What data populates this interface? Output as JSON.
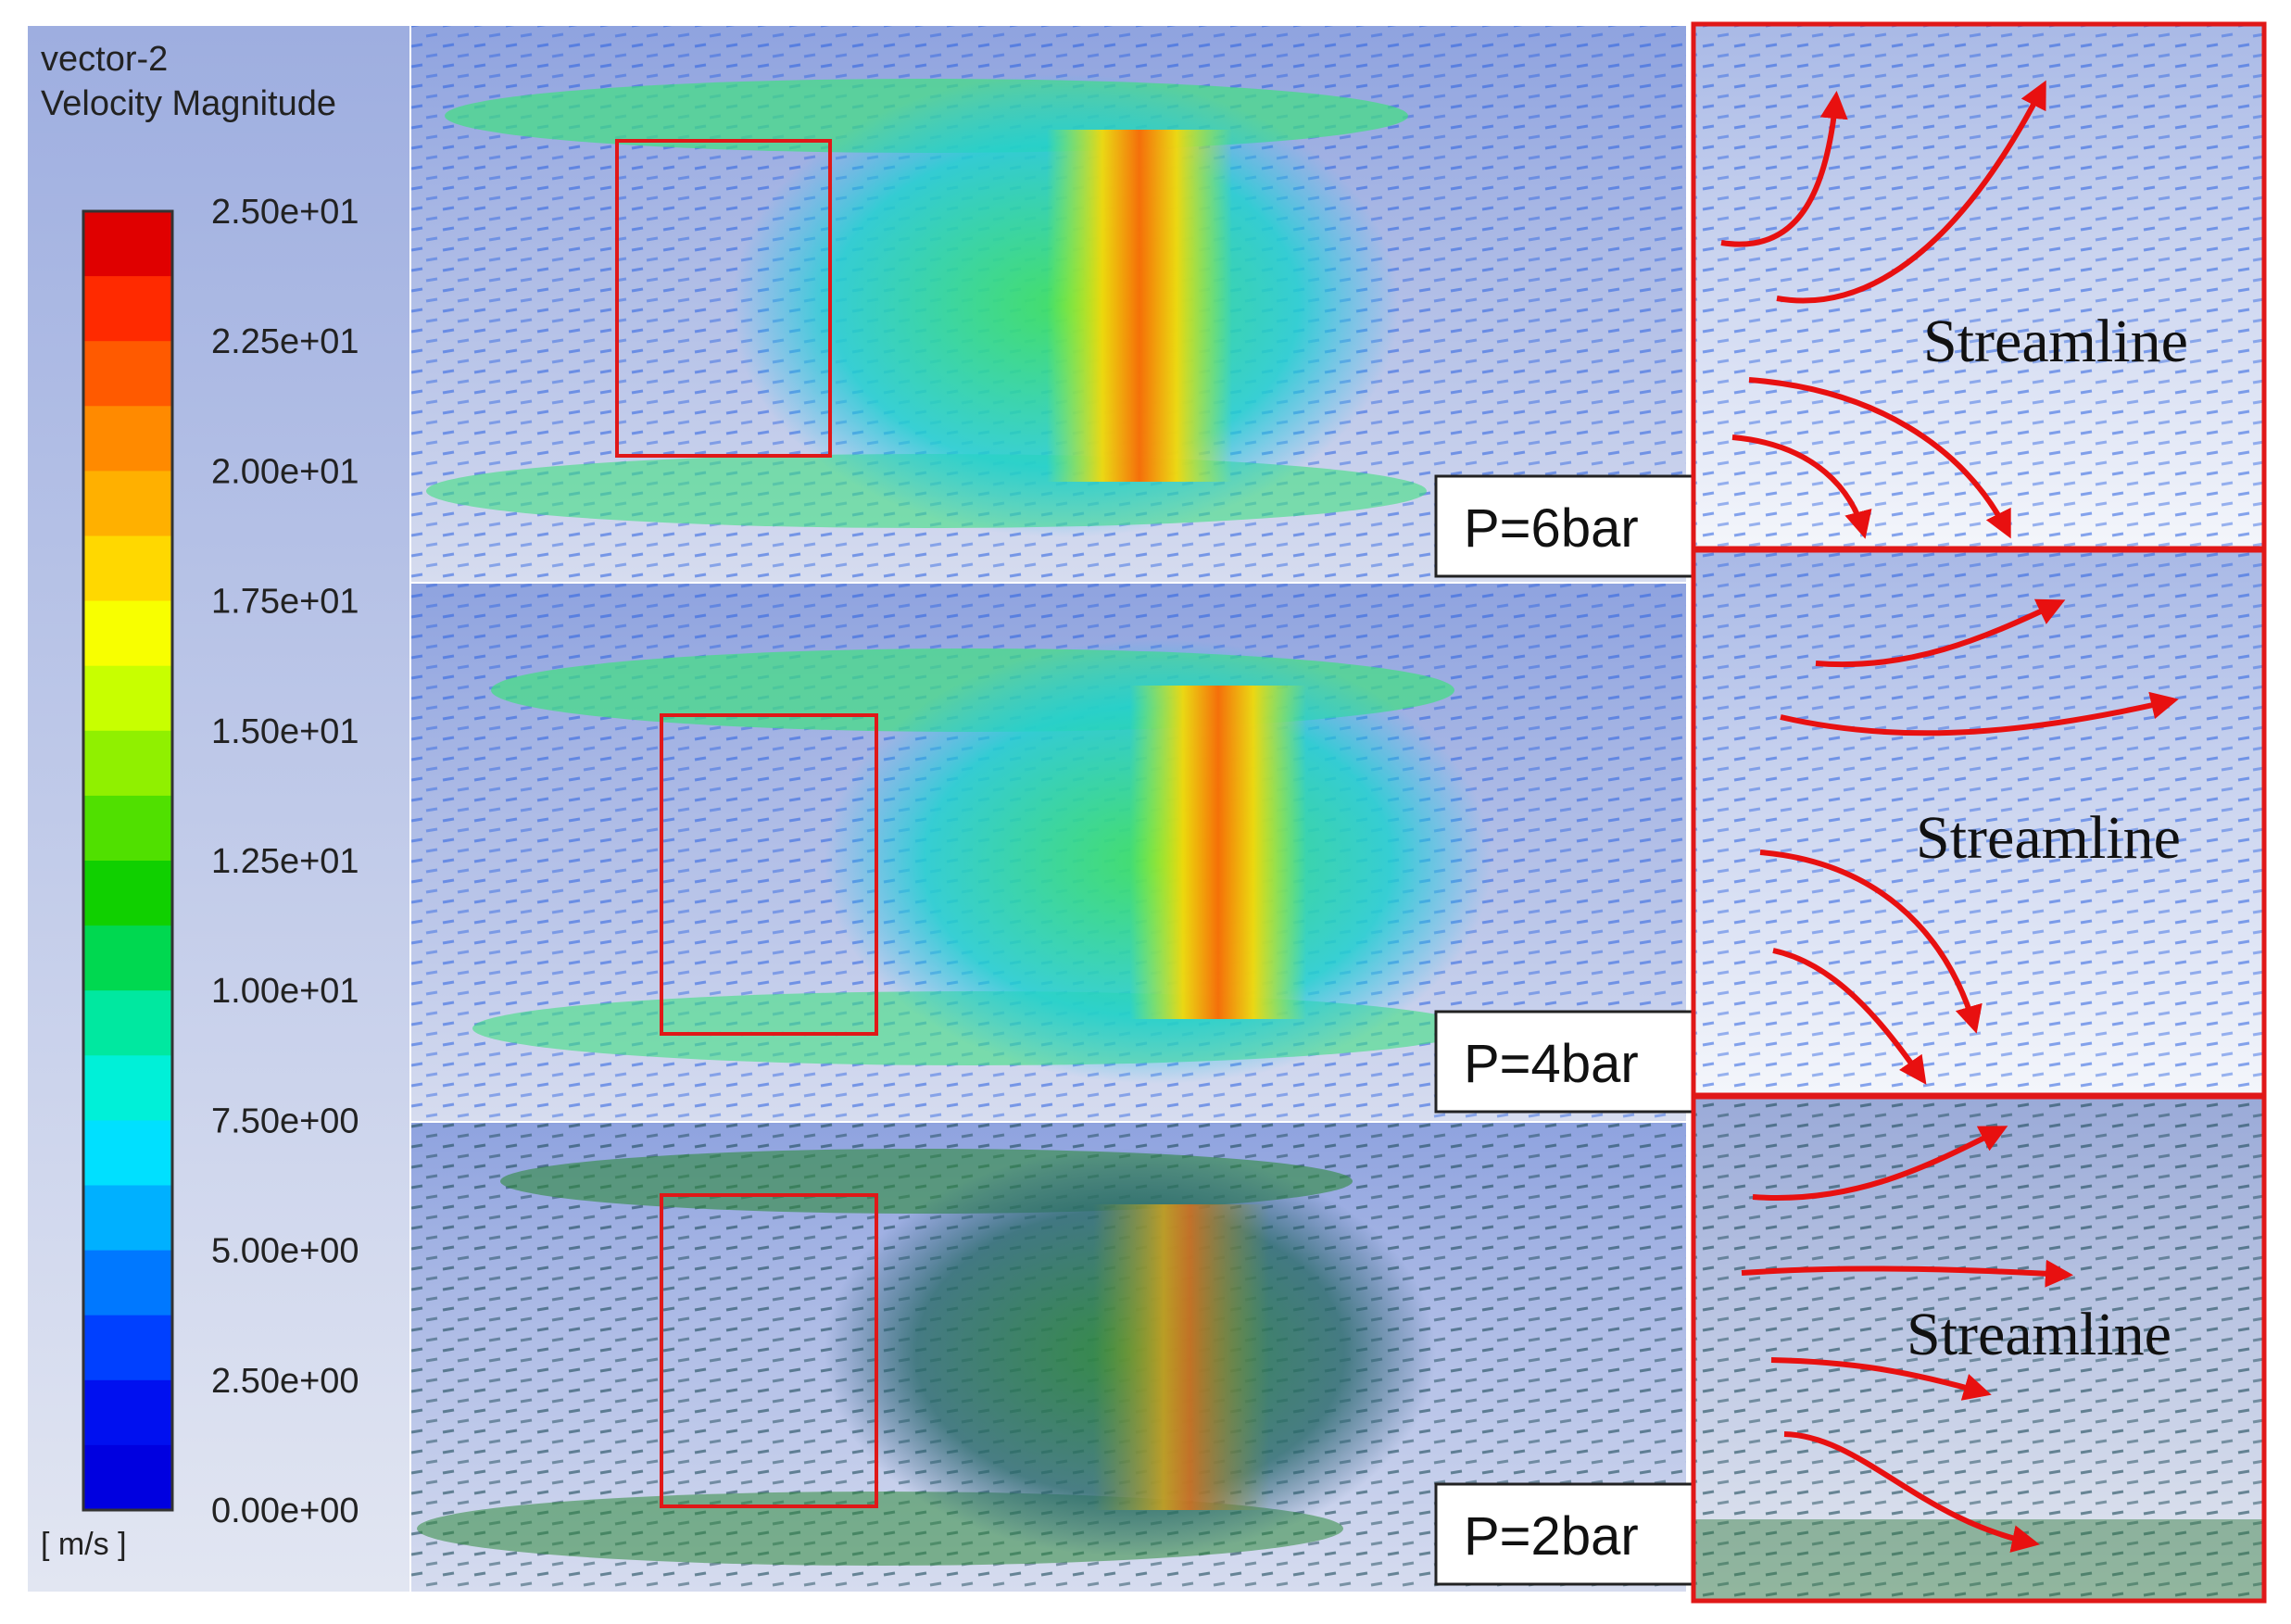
{
  "legend": {
    "title_line1": "vector-2",
    "title_line2": "Velocity Magnitude",
    "ticks": [
      "2.50e+01",
      "2.25e+01",
      "2.00e+01",
      "1.75e+01",
      "1.50e+01",
      "1.25e+01",
      "1.00e+01",
      "7.50e+00",
      "5.00e+00",
      "2.50e+00",
      "0.00e+00"
    ],
    "units": "[ m/s ]",
    "colors": [
      "#e00000",
      "#ff2a00",
      "#ff5a00",
      "#ff8a00",
      "#ffb000",
      "#ffd800",
      "#f8ff00",
      "#c8ff00",
      "#90f000",
      "#50e000",
      "#10d000",
      "#00d850",
      "#00e8a0",
      "#00f0d8",
      "#00e0ff",
      "#00b0ff",
      "#0078ff",
      "#0040ff",
      "#0010f0",
      "#0000e0"
    ]
  },
  "panels": [
    {
      "label": "P=6bar",
      "streamline_text": "Streamline"
    },
    {
      "label": "P=4bar",
      "streamline_text": "Streamline"
    },
    {
      "label": "P=2bar",
      "streamline_text": "Streamline"
    }
  ]
}
